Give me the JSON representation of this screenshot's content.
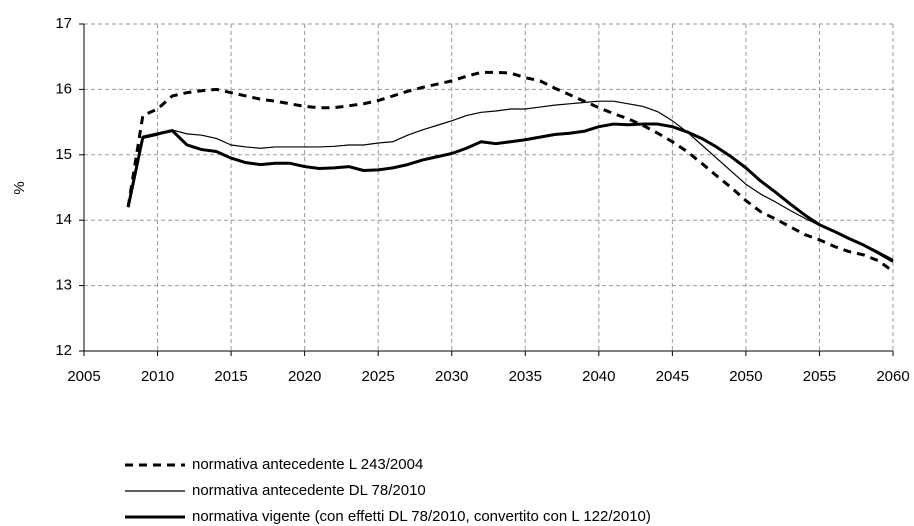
{
  "chart_data": {
    "type": "line",
    "y_label": "%",
    "x": [
      2008,
      2009,
      2010,
      2011,
      2012,
      2013,
      2014,
      2015,
      2016,
      2017,
      2018,
      2019,
      2020,
      2021,
      2022,
      2023,
      2024,
      2025,
      2026,
      2027,
      2028,
      2029,
      2030,
      2031,
      2032,
      2033,
      2034,
      2035,
      2036,
      2037,
      2038,
      2039,
      2040,
      2041,
      2042,
      2043,
      2044,
      2045,
      2046,
      2047,
      2048,
      2049,
      2050,
      2051,
      2052,
      2053,
      2054,
      2055,
      2056,
      2057,
      2058,
      2059,
      2060
    ],
    "xlim": [
      2005,
      2060
    ],
    "xticks": [
      2005,
      2010,
      2015,
      2020,
      2025,
      2030,
      2035,
      2040,
      2045,
      2050,
      2055,
      2060
    ],
    "ylim": [
      12,
      17
    ],
    "yticks": [
      12,
      13,
      14,
      15,
      16,
      17
    ],
    "grid": true,
    "series": [
      {
        "name": "normativa antecedente L 243/2004",
        "color": "#000000",
        "width": 3,
        "dash": "8 6",
        "values": [
          14.2,
          15.6,
          15.7,
          15.9,
          15.95,
          15.98,
          16.0,
          15.95,
          15.9,
          15.85,
          15.82,
          15.78,
          15.74,
          15.72,
          15.72,
          15.75,
          15.78,
          15.83,
          15.9,
          15.97,
          16.03,
          16.08,
          16.13,
          16.2,
          16.26,
          16.26,
          16.25,
          16.18,
          16.13,
          16.02,
          15.92,
          15.82,
          15.72,
          15.63,
          15.55,
          15.45,
          15.33,
          15.2,
          15.05,
          14.87,
          14.68,
          14.5,
          14.3,
          14.13,
          14.02,
          13.9,
          13.78,
          13.7,
          13.6,
          13.52,
          13.47,
          13.38,
          13.22
        ]
      },
      {
        "name": "normativa antecedente DL 78/2010",
        "color": "#000000",
        "width": 1.2,
        "dash": "none",
        "values": [
          14.2,
          15.25,
          15.3,
          15.38,
          15.32,
          15.3,
          15.25,
          15.15,
          15.12,
          15.1,
          15.12,
          15.12,
          15.12,
          15.12,
          15.13,
          15.15,
          15.15,
          15.18,
          15.2,
          15.3,
          15.38,
          15.45,
          15.52,
          15.6,
          15.65,
          15.67,
          15.7,
          15.7,
          15.73,
          15.76,
          15.78,
          15.8,
          15.82,
          15.82,
          15.78,
          15.74,
          15.66,
          15.52,
          15.35,
          15.15,
          14.95,
          14.75,
          14.55,
          14.4,
          14.28,
          14.15,
          14.03,
          13.92,
          13.83,
          13.73,
          13.63,
          13.52,
          13.4
        ]
      },
      {
        "name": "normativa vigente (con effetti DL 78/2010, convertito con L 122/2010)",
        "color": "#000000",
        "width": 3,
        "dash": "none",
        "values": [
          14.2,
          15.27,
          15.32,
          15.37,
          15.15,
          15.08,
          15.05,
          14.95,
          14.88,
          14.85,
          14.87,
          14.87,
          14.82,
          14.79,
          14.8,
          14.82,
          14.76,
          14.77,
          14.8,
          14.85,
          14.92,
          14.97,
          15.02,
          15.1,
          15.2,
          15.17,
          15.2,
          15.23,
          15.27,
          15.31,
          15.33,
          15.36,
          15.43,
          15.47,
          15.46,
          15.47,
          15.47,
          15.43,
          15.35,
          15.25,
          15.12,
          14.97,
          14.8,
          14.6,
          14.43,
          14.25,
          14.08,
          13.93,
          13.83,
          13.72,
          13.62,
          13.5,
          13.37
        ]
      }
    ]
  }
}
